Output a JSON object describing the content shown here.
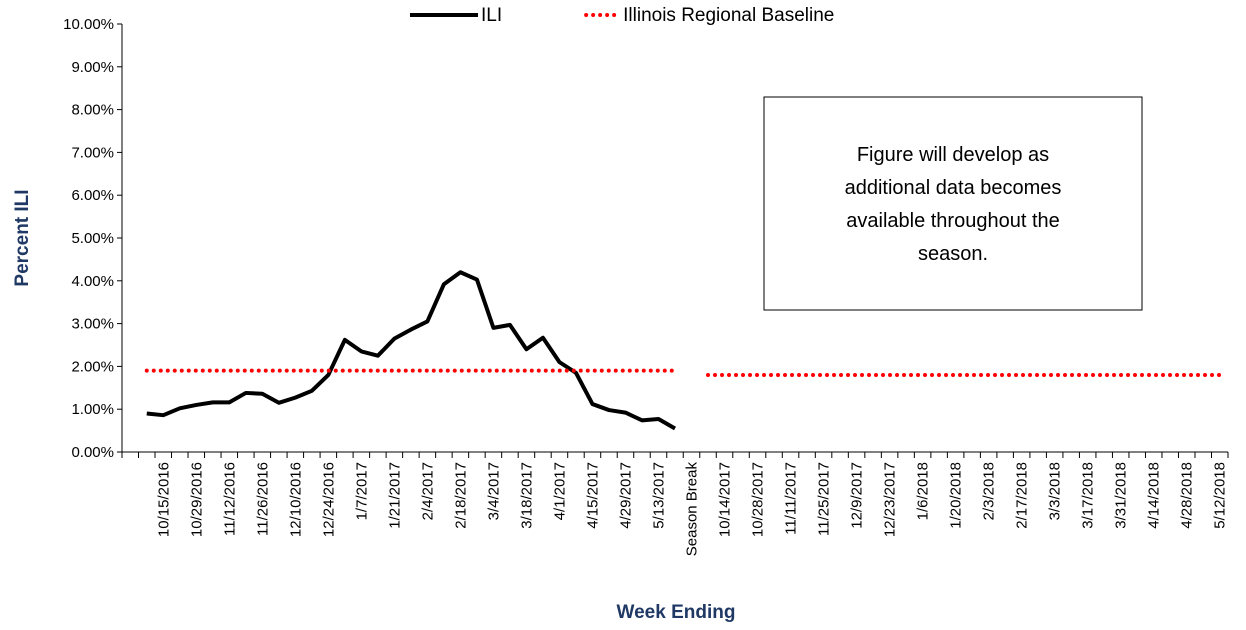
{
  "chart_data": {
    "type": "line",
    "title": null,
    "x_label": "Week Ending",
    "y_label": "Percent ILI",
    "categories": [
      null,
      null,
      "10/15/2016",
      null,
      "10/29/2016",
      null,
      "11/12/2016",
      null,
      "11/26/2016",
      null,
      "12/10/2016",
      null,
      "12/24/2016",
      null,
      "1/7/2017",
      null,
      "1/21/2017",
      null,
      "2/4/2017",
      null,
      "2/18/2017",
      null,
      "3/4/2017",
      null,
      "3/18/2017",
      null,
      "4/1/2017",
      null,
      "4/15/2017",
      null,
      "4/29/2017",
      null,
      "5/13/2017",
      null,
      "Season Break",
      null,
      "10/14/2017",
      null,
      "10/28/2017",
      null,
      "11/11/2017",
      null,
      "11/25/2017",
      null,
      "12/9/2017",
      null,
      "12/23/2017",
      null,
      "1/6/2018",
      null,
      "1/20/2018",
      null,
      "2/3/2018",
      null,
      "2/17/2018",
      null,
      "3/3/2018",
      null,
      "3/17/2018",
      null,
      "3/31/2018",
      null,
      "4/14/2018",
      null,
      "4/28/2018",
      null,
      "5/12/2018"
    ],
    "series": [
      {
        "name": "ILI",
        "color": "#000000",
        "style": "solid",
        "values": [
          null,
          0.9,
          0.86,
          1.02,
          1.1,
          1.16,
          1.16,
          1.38,
          1.36,
          1.15,
          1.27,
          1.43,
          1.8,
          2.62,
          2.35,
          2.25,
          2.65,
          2.86,
          3.05,
          3.92,
          4.2,
          4.03,
          2.9,
          2.97,
          2.4,
          2.67,
          2.1,
          1.85,
          1.12,
          0.98,
          0.92,
          0.74,
          0.77,
          0.55,
          null,
          null,
          null,
          null,
          null,
          null,
          null,
          null,
          null,
          null,
          null,
          null,
          null,
          null,
          null,
          null,
          null,
          null,
          null,
          null,
          null,
          null,
          null,
          null,
          null,
          null,
          null,
          null,
          null,
          null,
          null,
          null,
          null
        ]
      },
      {
        "name": "Illinois Regional Baseline",
        "color": "#ff0000",
        "style": "dotted",
        "values": [
          null,
          1.9,
          1.9,
          1.9,
          1.9,
          1.9,
          1.9,
          1.9,
          1.9,
          1.9,
          1.9,
          1.9,
          1.9,
          1.9,
          1.9,
          1.9,
          1.9,
          1.9,
          1.9,
          1.9,
          1.9,
          1.9,
          1.9,
          1.9,
          1.9,
          1.9,
          1.9,
          1.9,
          1.9,
          1.9,
          1.9,
          1.9,
          1.9,
          1.9,
          null,
          1.8,
          1.8,
          1.8,
          1.8,
          1.8,
          1.8,
          1.8,
          1.8,
          1.8,
          1.8,
          1.8,
          1.8,
          1.8,
          1.8,
          1.8,
          1.8,
          1.8,
          1.8,
          1.8,
          1.8,
          1.8,
          1.8,
          1.8,
          1.8,
          1.8,
          1.8,
          1.8,
          1.8,
          1.8,
          1.8,
          1.8,
          1.8
        ]
      }
    ],
    "ylim": [
      0,
      10
    ],
    "yticks": [
      {
        "value": 0,
        "label": "0.00%"
      },
      {
        "value": 1,
        "label": "1.00%"
      },
      {
        "value": 2,
        "label": "2.00%"
      },
      {
        "value": 3,
        "label": "3.00%"
      },
      {
        "value": 4,
        "label": "4.00%"
      },
      {
        "value": 5,
        "label": "5.00%"
      },
      {
        "value": 6,
        "label": "6.00%"
      },
      {
        "value": 7,
        "label": "7.00%"
      },
      {
        "value": 8,
        "label": "8.00%"
      },
      {
        "value": 9,
        "label": "9.00%"
      },
      {
        "value": 10,
        "label": "10.00%"
      }
    ],
    "grid": false,
    "legend": "top",
    "annotation": [
      "Figure will develop as",
      "additional data becomes",
      "available throughout the",
      "season."
    ]
  }
}
